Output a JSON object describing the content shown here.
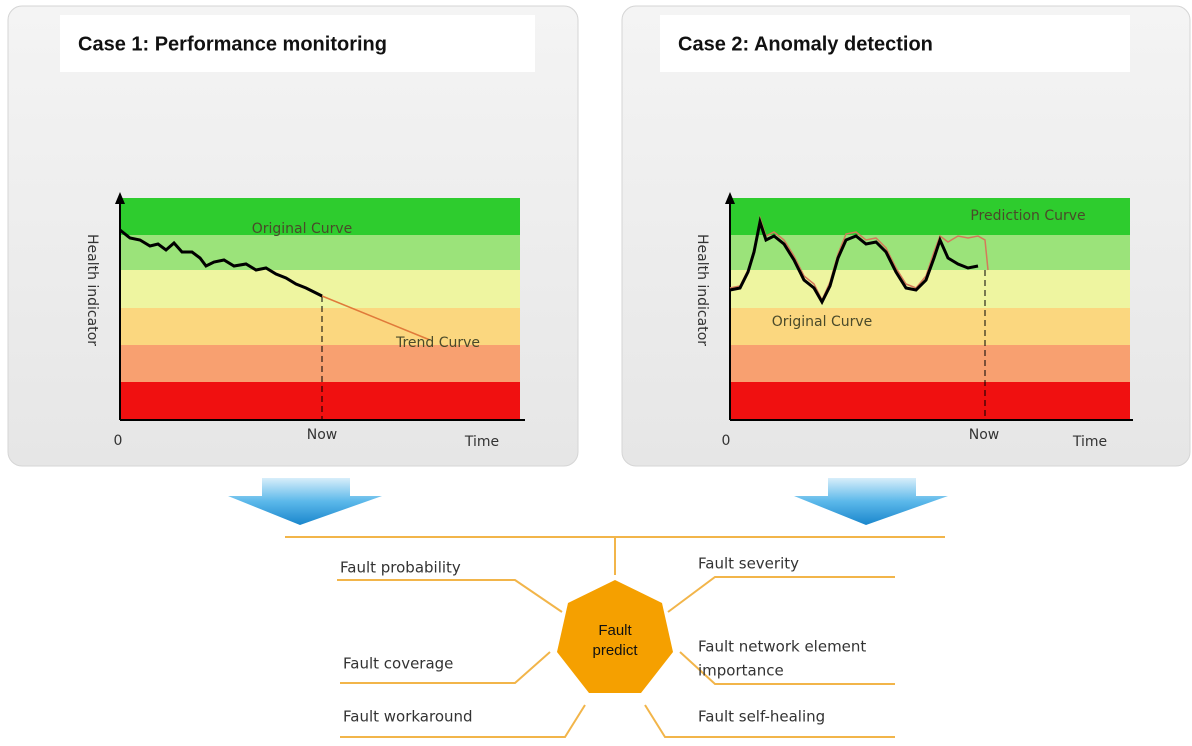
{
  "panels": [
    {
      "title": "Case 1: Performance monitoring",
      "y_label": "Health indicator",
      "origin": "0",
      "now": "Now",
      "x_label": "Time",
      "curve_labels": [
        "Original Curve",
        "Trend Curve"
      ]
    },
    {
      "title": "Case 2: Anomaly detection",
      "y_label": "Health indicator",
      "origin": "0",
      "now": "Now",
      "x_label": "Time",
      "curve_labels": [
        "Prediction Curve",
        "Original Curve"
      ]
    }
  ],
  "center": [
    "Fault",
    "predict"
  ],
  "factors_left": [
    "Fault probability",
    "Fault coverage",
    "Fault workaround"
  ],
  "factors_right": [
    [
      "Fault severity"
    ],
    [
      "Fault network element",
      "importance"
    ],
    [
      "Fault self-healing"
    ]
  ]
}
